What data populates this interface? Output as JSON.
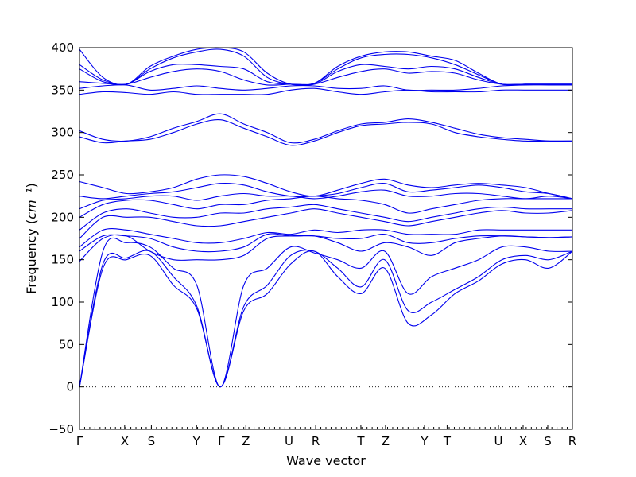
{
  "chart_data": {
    "type": "line",
    "title": "",
    "xlabel": "Wave vector",
    "ylabel": "Frequency",
    "ylabel_unit": "cm⁻¹",
    "ylim": [
      -50,
      400
    ],
    "yticks": [
      -50,
      0,
      50,
      100,
      150,
      200,
      250,
      300,
      350,
      400
    ],
    "xlim": [
      0,
      24
    ],
    "high_symmetry_points": [
      {
        "label": "Γ",
        "x": 0
      },
      {
        "label": "X",
        "x": 2.2
      },
      {
        "label": "S",
        "x": 3.5
      },
      {
        "label": "Y",
        "x": 5.7
      },
      {
        "label": "Γ",
        "x": 6.9
      },
      {
        "label": "Z",
        "x": 8.1
      },
      {
        "label": "U",
        "x": 10.2
      },
      {
        "label": "R",
        "x": 11.5
      },
      {
        "label": "T",
        "x": 13.7
      },
      {
        "label": "Z",
        "x": 14.9
      },
      {
        "label": "Y",
        "x": 16.8
      },
      {
        "label": "T",
        "x": 17.9
      },
      {
        "label": "U",
        "x": 20.4
      },
      {
        "label": "X",
        "x": 21.6
      },
      {
        "label": "S",
        "x": 22.8
      },
      {
        "label": "R",
        "x": 24
      }
    ],
    "grid": false,
    "zero_line": true,
    "series_color": "#0000ee",
    "series": [
      {
        "values": [
          0,
          140,
          150,
          155,
          120,
          92,
          0,
          90,
          110,
          145,
          160,
          130,
          110,
          140,
          75,
          85,
          110,
          125,
          145,
          150,
          140,
          160
        ]
      },
      {
        "values": [
          0,
          145,
          152,
          160,
          130,
          95,
          0,
          95,
          120,
          155,
          160,
          140,
          118,
          150,
          90,
          100,
          115,
          130,
          150,
          155,
          150,
          160
        ]
      },
      {
        "values": [
          0,
          160,
          170,
          165,
          140,
          120,
          0,
          120,
          140,
          165,
          158,
          150,
          140,
          160,
          110,
          130,
          140,
          150,
          165,
          165,
          160,
          160
        ]
      },
      {
        "values": [
          148,
          175,
          178,
          160,
          150,
          150,
          150,
          155,
          175,
          178,
          178,
          170,
          160,
          170,
          165,
          155,
          170,
          175,
          178,
          177,
          176,
          177
        ]
      },
      {
        "values": [
          160,
          178,
          178,
          175,
          165,
          160,
          160,
          165,
          180,
          178,
          178,
          175,
          175,
          180,
          170,
          170,
          175,
          178,
          178,
          177,
          176,
          177
        ]
      },
      {
        "values": [
          165,
          185,
          185,
          180,
          175,
          170,
          170,
          175,
          182,
          180,
          185,
          182,
          185,
          185,
          180,
          180,
          180,
          185,
          185,
          185,
          185,
          185
        ]
      },
      {
        "values": [
          175,
          200,
          200,
          200,
          195,
          190,
          190,
          195,
          200,
          205,
          210,
          205,
          200,
          195,
          190,
          195,
          200,
          205,
          208,
          205,
          205,
          208
        ]
      },
      {
        "values": [
          185,
          205,
          210,
          205,
          200,
          200,
          205,
          205,
          210,
          212,
          215,
          210,
          205,
          200,
          195,
          200,
          205,
          210,
          212,
          210,
          210,
          210
        ]
      },
      {
        "values": [
          200,
          215,
          220,
          220,
          215,
          210,
          215,
          215,
          220,
          222,
          225,
          222,
          220,
          215,
          205,
          210,
          215,
          220,
          222,
          222,
          222,
          222
        ]
      },
      {
        "values": [
          210,
          220,
          222,
          225,
          225,
          220,
          225,
          228,
          225,
          225,
          222,
          225,
          230,
          232,
          225,
          225,
          228,
          228,
          225,
          222,
          225,
          222
        ]
      },
      {
        "values": [
          225,
          222,
          225,
          228,
          230,
          235,
          240,
          238,
          230,
          225,
          225,
          228,
          235,
          240,
          230,
          232,
          235,
          238,
          235,
          230,
          228,
          222
        ]
      },
      {
        "values": [
          242,
          235,
          228,
          230,
          235,
          245,
          250,
          248,
          240,
          230,
          225,
          232,
          240,
          245,
          238,
          235,
          238,
          240,
          238,
          235,
          228,
          222
        ]
      },
      {
        "values": [
          295,
          288,
          290,
          292,
          300,
          310,
          315,
          305,
          295,
          285,
          290,
          300,
          308,
          310,
          312,
          310,
          300,
          295,
          292,
          290,
          290,
          290
        ]
      },
      {
        "values": [
          302,
          292,
          290,
          295,
          305,
          313,
          322,
          310,
          300,
          288,
          292,
          302,
          310,
          312,
          316,
          312,
          305,
          298,
          294,
          292,
          290,
          290
        ]
      },
      {
        "values": [
          345,
          348,
          347,
          345,
          348,
          345,
          345,
          345,
          345,
          350,
          352,
          348,
          345,
          348,
          350,
          348,
          348,
          348,
          350,
          350,
          350,
          350
        ]
      },
      {
        "values": [
          352,
          355,
          356,
          350,
          352,
          355,
          352,
          350,
          352,
          355,
          355,
          352,
          352,
          355,
          350,
          350,
          350,
          352,
          355,
          356,
          356,
          356
        ]
      },
      {
        "values": [
          360,
          358,
          357,
          365,
          372,
          375,
          372,
          362,
          356,
          357,
          357,
          365,
          372,
          375,
          370,
          372,
          370,
          362,
          357,
          357,
          357,
          357
        ]
      },
      {
        "values": [
          375,
          360,
          357,
          372,
          380,
          380,
          378,
          375,
          360,
          357,
          357,
          372,
          380,
          378,
          375,
          378,
          375,
          365,
          357,
          357,
          357,
          357
        ]
      },
      {
        "values": [
          380,
          362,
          357,
          375,
          388,
          395,
          398,
          390,
          365,
          357,
          358,
          375,
          388,
          392,
          392,
          388,
          380,
          368,
          357,
          357,
          357,
          357
        ]
      },
      {
        "values": [
          398,
          365,
          357,
          378,
          390,
          398,
          400,
          395,
          370,
          357,
          358,
          378,
          390,
          395,
          395,
          390,
          385,
          370,
          357,
          357,
          357,
          357
        ]
      }
    ]
  }
}
